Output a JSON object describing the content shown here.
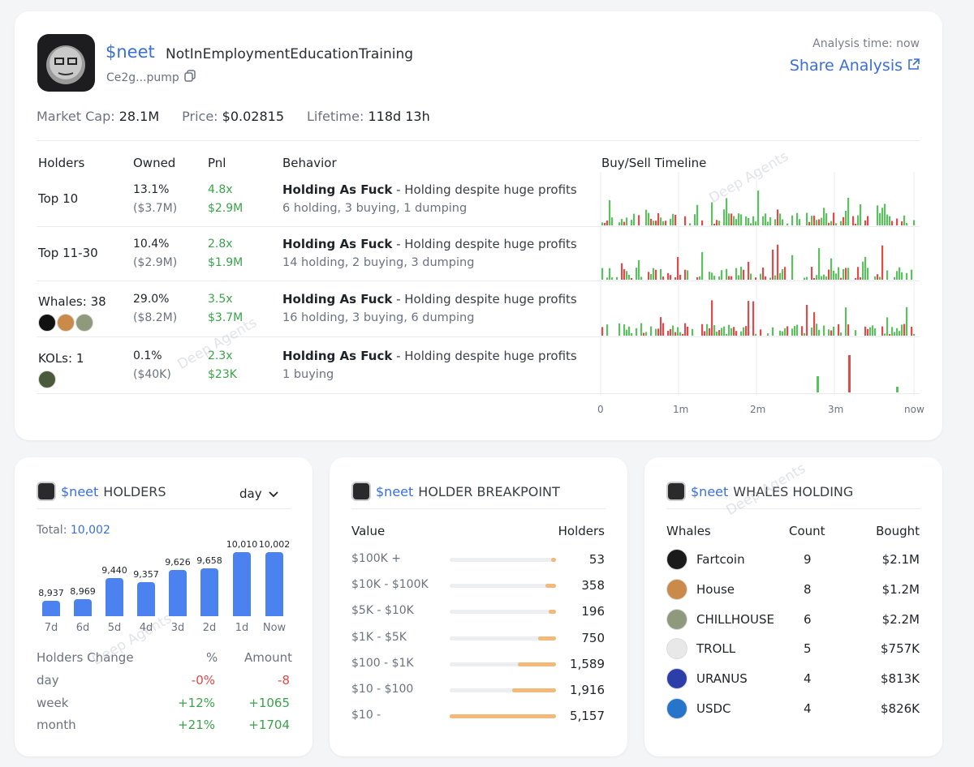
{
  "token": {
    "ticker": "$neet",
    "name": "NotInEmploymentEducationTraining",
    "address": "Ce2g...pump",
    "analysis_time": "Analysis time: now",
    "share_label": "Share Analysis"
  },
  "stats": {
    "market_cap_label": "Market Cap:",
    "market_cap": "28.1M",
    "price_label": "Price:",
    "price": "$0.02815",
    "lifetime_label": "Lifetime:",
    "lifetime": "118d 13h"
  },
  "table": {
    "headers": [
      "Holders",
      "Owned",
      "Pnl",
      "Behavior",
      "Buy/Sell Timeline"
    ],
    "rows": [
      {
        "holders": "Top 10",
        "owned_pct": "13.1%",
        "owned_usd": "($3.7M)",
        "pnl_x": "4.8x",
        "pnl_usd": "$2.9M",
        "behavior_title": "Holding As Fuck",
        "behavior_desc": " - Holding despite huge profits",
        "behavior_detail": "6 holding, 3 buying, 1 dumping"
      },
      {
        "holders": "Top 11-30",
        "owned_pct": "10.4%",
        "owned_usd": "($2.9M)",
        "pnl_x": "2.8x",
        "pnl_usd": "$1.9M",
        "behavior_title": "Holding As Fuck",
        "behavior_desc": " - Holding despite huge profits",
        "behavior_detail": "14 holding, 2 buying, 3 dumping"
      },
      {
        "holders": "Whales: 38",
        "owned_pct": "29.0%",
        "owned_usd": "($8.2M)",
        "pnl_x": "3.5x",
        "pnl_usd": "$3.7M",
        "behavior_title": "Holding As Fuck",
        "behavior_desc": " - Holding despite huge profits",
        "behavior_detail": "16 holding, 3 buying, 6 dumping"
      },
      {
        "holders": "KOLs: 1",
        "owned_pct": "0.1%",
        "owned_usd": "($40K)",
        "pnl_x": "2.3x",
        "pnl_usd": "$23K",
        "behavior_title": "Holding As Fuck",
        "behavior_desc": " - Holding despite huge profits",
        "behavior_detail": "1 buying"
      }
    ],
    "timeline_axis": [
      "0",
      "1m",
      "2m",
      "3m",
      "now"
    ]
  },
  "holders_card": {
    "ticker": "$neet",
    "title": "HOLDERS",
    "period": "day",
    "total_label": "Total:",
    "total": "10,002",
    "change_header": "Holders Change",
    "pct_header": "%",
    "amount_header": "Amount",
    "changes": [
      {
        "period": "day",
        "pct": "-0%",
        "amount": "-8"
      },
      {
        "period": "week",
        "pct": "+12%",
        "amount": "+1065"
      },
      {
        "period": "month",
        "pct": "+21%",
        "amount": "+1704"
      }
    ]
  },
  "chart_data": {
    "type": "bar",
    "categories": [
      "7d",
      "6d",
      "5d",
      "4d",
      "3d",
      "2d",
      "1d",
      "Now"
    ],
    "values": [
      8937,
      8969,
      9440,
      9357,
      9626,
      9658,
      10010,
      10002
    ],
    "value_labels": [
      "8,937",
      "8,969",
      "9,440",
      "9,357",
      "9,626",
      "9,658",
      "10,010",
      "10,002"
    ],
    "title": "$neet HOLDERS",
    "xlabel": "",
    "ylabel": "",
    "ylim": [
      8600,
      10100
    ],
    "color": "#4c82ef"
  },
  "breakpoint_card": {
    "ticker": "$neet",
    "title": "HOLDER BREAKPOINT",
    "value_header": "Value",
    "holders_header": "Holders",
    "rows": [
      {
        "label": "$100K +",
        "holders": "53",
        "fraction": 0.03
      },
      {
        "label": "$10K - $100K",
        "holders": "358",
        "fraction": 0.1
      },
      {
        "label": "$5K - $10K",
        "holders": "196",
        "fraction": 0.07
      },
      {
        "label": "$1K - $5K",
        "holders": "750",
        "fraction": 0.17
      },
      {
        "label": "$100 - $1K",
        "holders": "1,589",
        "fraction": 0.36
      },
      {
        "label": "$10 - $100",
        "holders": "1,916",
        "fraction": 0.41
      },
      {
        "label": "$10 -",
        "holders": "5,157",
        "fraction": 1.0
      }
    ]
  },
  "whales_card": {
    "ticker": "$neet",
    "title": "WHALES HOLDING",
    "headers": [
      "Whales",
      "Count",
      "Bought"
    ],
    "rows": [
      {
        "name": "Fartcoin",
        "count": "9",
        "bought": "$2.1M",
        "color": "#1a1a1a"
      },
      {
        "name": "House",
        "count": "8",
        "bought": "$1.2M",
        "color": "#c98a4a"
      },
      {
        "name": "CHILLHOUSE",
        "count": "6",
        "bought": "$2.2M",
        "color": "#8f9a7d"
      },
      {
        "name": "TROLL",
        "count": "5",
        "bought": "$757K",
        "color": "#e8e8e8"
      },
      {
        "name": "URANUS",
        "count": "4",
        "bought": "$813K",
        "color": "#2c3fa8"
      },
      {
        "name": "USDC",
        "count": "4",
        "bought": "$826K",
        "color": "#2775ca"
      }
    ]
  },
  "watermark": "Deep Agents"
}
